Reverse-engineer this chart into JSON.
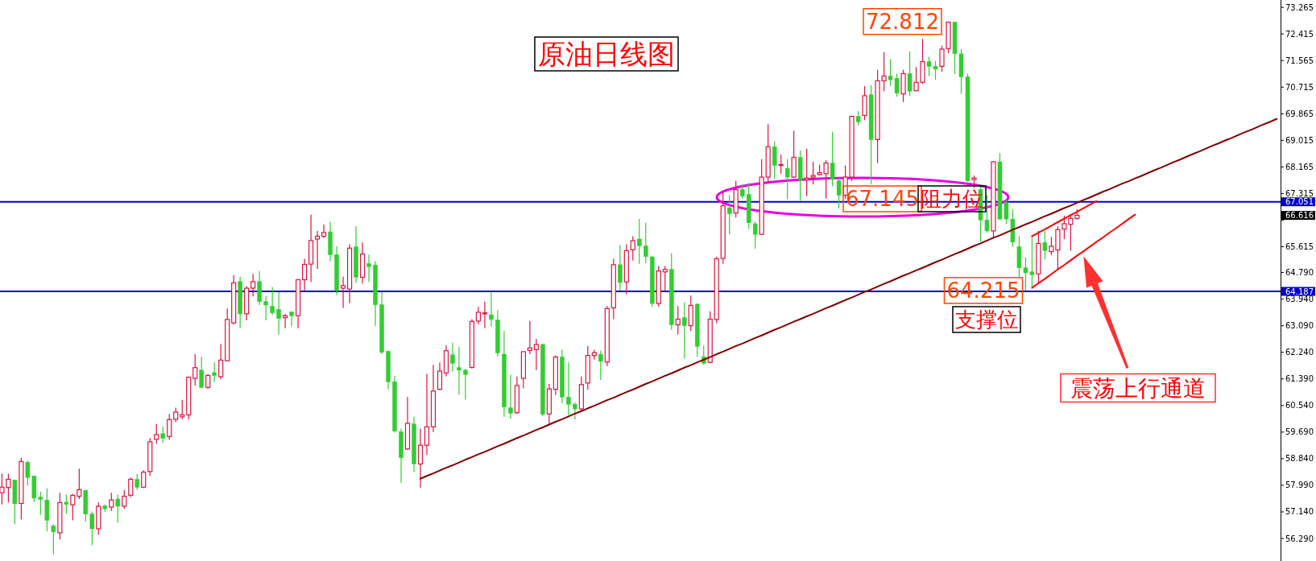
{
  "chart_data": {
    "type": "candlestick",
    "title": "原油日线图",
    "categories": [
      null,
      null,
      null,
      null,
      null,
      null,
      null,
      null,
      null,
      null,
      null,
      null,
      null,
      null,
      null,
      null,
      null,
      null,
      null,
      null,
      null,
      null,
      null,
      null,
      null,
      null,
      null,
      null,
      null,
      null,
      null,
      null,
      null,
      null,
      null,
      null,
      null,
      null,
      null,
      null,
      null,
      null,
      null,
      null,
      null,
      null,
      null,
      null,
      null,
      null,
      null,
      null,
      null,
      null,
      null,
      null,
      null,
      null,
      null,
      null,
      null,
      null,
      null,
      null,
      null,
      null,
      null,
      null,
      null,
      null,
      null,
      null,
      null,
      null,
      null,
      null,
      null,
      null,
      null,
      null,
      null,
      null,
      null,
      null,
      null,
      null,
      null,
      null,
      null,
      null,
      null,
      null,
      null,
      null,
      null,
      null,
      null,
      null,
      null,
      null,
      null,
      null,
      null,
      null,
      null,
      null,
      null,
      null,
      null,
      null,
      null,
      null,
      null,
      null,
      null,
      null,
      null,
      null,
      null,
      null,
      null,
      null,
      null,
      null,
      null,
      null,
      null,
      null,
      null,
      null,
      null,
      null,
      null,
      null,
      null,
      null,
      null,
      null,
      null,
      null,
      null,
      null,
      null,
      null,
      null,
      null,
      null,
      null,
      null,
      null,
      null,
      null,
      null,
      null,
      null,
      null,
      null,
      null,
      null,
      null,
      null,
      null,
      null,
      null,
      null,
      null,
      null,
      null,
      null,
      null,
      null,
      null,
      null,
      null,
      null,
      null,
      null,
      null,
      null,
      null,
      null,
      null,
      null,
      null,
      null,
      null,
      null,
      null,
      null,
      null,
      null,
      null,
      null,
      null,
      null,
      null,
      null,
      null,
      null
    ],
    "colors": [
      "#dc143c",
      "#dc143c",
      "#32cd32",
      "#dc143c",
      "#32cd32",
      "#32cd32",
      "#32cd32",
      "#32cd32",
      "#32cd32",
      "#dc143c",
      "#32cd32",
      "#dc143c",
      "#dc143c",
      "#32cd32",
      "#32cd32",
      "#dc143c",
      "#32cd32",
      "#dc143c",
      "#32cd32",
      "#dc143c",
      "#dc143c",
      "#32cd32",
      "#dc143c",
      "#dc143c",
      "#dc143c",
      "#32cd32",
      "#dc143c",
      "#dc143c",
      "#dc143c",
      "#dc143c",
      "#dc143c",
      "#32cd32",
      "#dc143c",
      "#32cd32",
      "#dc143c",
      "#dc143c",
      "#dc143c",
      "#32cd32",
      "#dc143c",
      "#dc143c",
      "#32cd32",
      "#32cd32",
      "#32cd32",
      "#32cd32",
      "#dc143c",
      "#32cd32",
      "#dc143c",
      "#dc143c",
      "#dc143c",
      "#dc143c",
      "#dc143c",
      "#32cd32",
      "#32cd32",
      "#dc143c",
      "#dc143c",
      "#32cd32",
      "#dc143c",
      "#32cd32",
      "#32cd32",
      "#32cd32",
      "#32cd32",
      "#32cd32",
      "#32cd32",
      "#dc143c",
      "#32cd32",
      "#dc143c",
      "#dc143c",
      "#dc143c",
      "#dc143c",
      "#dc143c",
      "#32cd32",
      "#32cd32",
      "#32cd32",
      "#dc143c",
      "#dc143c",
      "#dc143c",
      "#32cd32",
      "#32cd32",
      "#32cd32",
      "#32cd32",
      "#dc143c",
      "#dc143c",
      "#dc143c",
      "#dc143c",
      "#32cd32",
      "#dc143c",
      "#dc143c",
      "#32cd32",
      "#32cd32",
      "#32cd32",
      "#dc143c",
      "#dc143c",
      "#dc143c",
      "#32cd32",
      "#dc143c",
      "#dc143c",
      "#32cd32",
      "#dc143c",
      "#dc143c",
      "#32cd32",
      "#32cd32",
      "#32cd32",
      "#dc143c",
      "#dc143c",
      "#32cd32",
      "#dc143c",
      "#32cd32",
      "#dc143c",
      "#32cd32",
      "#32cd32",
      "#dc143c",
      "#dc143c",
      "#dc143c",
      "#32cd32",
      "#dc143c",
      "#32cd32",
      "#32cd32",
      "#32cd32",
      "#dc143c",
      "#dc143c",
      "#32cd32",
      "#dc143c",
      "#32cd32",
      "#dc143c",
      "#32cd32",
      "#dc143c",
      "#dc143c",
      "#dc143c",
      "#dc143c",
      "#32cd32",
      "#32cd32",
      "#dc143c",
      "#dc143c",
      "#32cd32",
      "#dc143c",
      "#32cd32",
      "#dc143c",
      "#dc143c",
      "#32cd32",
      "#32cd32",
      "#dc143c",
      "#32cd32",
      "#dc143c",
      "#dc143c",
      "#32cd32",
      "#32cd32",
      "#dc143c",
      "#dc143c",
      "#32cd32",
      "#32cd32",
      "#32cd32",
      "#dc143c",
      "#32cd32",
      "#32cd32",
      "#dc143c",
      "#32cd32",
      "#32cd32",
      "#32cd32",
      "#32cd32",
      "#32cd32",
      "#32cd32",
      "#dc143c",
      "#32cd32",
      "#dc143c",
      "#dc143c",
      "#dc143c",
      "#dc143c",
      "#dc143c",
      null,
      null,
      null,
      null,
      null,
      null,
      null,
      null,
      null,
      null,
      null,
      null,
      null,
      null,
      null,
      null,
      null,
      null,
      null,
      null,
      null,
      null,
      null,
      null,
      null,
      null,
      null,
      null,
      null,
      null,
      null
    ],
    "ohlc": [
      [
        57.75,
        58.36,
        57.38,
        57.93
      ],
      [
        57.92,
        58.36,
        57.44,
        58.18
      ],
      [
        58.16,
        58.16,
        56.75,
        57.4
      ],
      [
        57.41,
        58.87,
        56.9,
        58.75
      ],
      [
        58.73,
        58.77,
        57.98,
        58.24
      ],
      [
        58.29,
        58.29,
        57.45,
        57.58
      ],
      [
        57.61,
        57.78,
        57.04,
        57.54
      ],
      [
        57.52,
        57.89,
        56.52,
        56.87
      ],
      [
        56.69,
        56.75,
        55.78,
        56.5
      ],
      [
        56.47,
        57.75,
        56.26,
        57.44
      ],
      [
        57.45,
        57.69,
        57.07,
        57.38
      ],
      [
        57.37,
        57.72,
        56.87,
        57.67
      ],
      [
        57.64,
        58.52,
        57.55,
        57.85
      ],
      [
        57.83,
        57.83,
        56.83,
        57.07
      ],
      [
        57.07,
        57.15,
        56.07,
        56.6
      ],
      [
        56.6,
        57.44,
        56.41,
        57.32
      ],
      [
        57.33,
        57.38,
        57.13,
        57.24
      ],
      [
        57.29,
        57.75,
        57.17,
        57.52
      ],
      [
        57.55,
        57.69,
        56.79,
        57.32
      ],
      [
        57.32,
        57.84,
        57.24,
        57.64
      ],
      [
        57.67,
        58.24,
        57.61,
        58.18
      ],
      [
        58.18,
        58.35,
        57.84,
        57.93
      ],
      [
        57.93,
        58.47,
        57.9,
        58.41
      ],
      [
        58.43,
        59.5,
        58.29,
        59.38
      ],
      [
        59.46,
        59.95,
        59.32,
        59.61
      ],
      [
        59.64,
        59.87,
        59.35,
        59.49
      ],
      [
        59.55,
        60.27,
        59.44,
        60.09
      ],
      [
        60.1,
        60.47,
        60.01,
        60.33
      ],
      [
        60.18,
        60.72,
        60.1,
        60.24
      ],
      [
        60.24,
        61.47,
        60.1,
        61.44
      ],
      [
        61.41,
        62.18,
        61.18,
        61.75
      ],
      [
        61.67,
        62.1,
        61.1,
        61.12
      ],
      [
        61.12,
        61.55,
        61.07,
        61.5
      ],
      [
        61.59,
        61.92,
        61.29,
        61.5
      ],
      [
        61.46,
        62.5,
        61.38,
        61.99
      ],
      [
        61.97,
        63.64,
        61.95,
        63.29
      ],
      [
        63.18,
        64.71,
        63.13,
        64.46
      ],
      [
        64.5,
        64.66,
        63.01,
        63.47
      ],
      [
        63.47,
        64.35,
        63.26,
        64.29
      ],
      [
        64.29,
        64.75,
        64.03,
        64.5
      ],
      [
        64.5,
        64.84,
        63.75,
        63.86
      ],
      [
        63.86,
        64.04,
        63.26,
        63.75
      ],
      [
        63.71,
        64.32,
        63.44,
        63.5
      ],
      [
        63.61,
        64.16,
        62.81,
        63.32
      ],
      [
        63.35,
        63.47,
        63.01,
        63.41
      ],
      [
        63.53,
        63.55,
        63.07,
        63.41
      ],
      [
        63.41,
        64.56,
        63.01,
        64.56
      ],
      [
        64.56,
        65.23,
        64.21,
        65.05
      ],
      [
        65.06,
        66.64,
        64.49,
        65.81
      ],
      [
        65.86,
        66.12,
        64.9,
        65.95
      ],
      [
        65.95,
        66.32,
        65.89,
        66.07
      ],
      [
        66.09,
        66.41,
        65.15,
        65.36
      ],
      [
        65.36,
        65.63,
        64.07,
        64.21
      ],
      [
        64.29,
        64.66,
        63.66,
        64.37
      ],
      [
        64.26,
        65.69,
        63.81,
        65.57
      ],
      [
        65.61,
        66.27,
        64.47,
        64.64
      ],
      [
        64.64,
        65.75,
        64.44,
        65.38
      ],
      [
        65.07,
        65.36,
        64.49,
        64.98
      ],
      [
        65.03,
        65.15,
        63.09,
        63.76
      ],
      [
        63.76,
        64.16,
        62.18,
        62.24
      ],
      [
        62.27,
        62.3,
        61.06,
        61.3
      ],
      [
        61.3,
        61.49,
        59.67,
        59.72
      ],
      [
        59.7,
        59.8,
        58.07,
        58.87
      ],
      [
        59.15,
        60.81,
        59.12,
        59.97
      ],
      [
        59.95,
        60.18,
        58.41,
        58.67
      ],
      [
        58.67,
        59.8,
        57.92,
        59.27
      ],
      [
        59.27,
        61.55,
        58.96,
        59.86
      ],
      [
        59.86,
        61.84,
        59.69,
        61.0
      ],
      [
        61.06,
        61.92,
        61.03,
        61.64
      ],
      [
        61.58,
        62.46,
        61.47,
        62.29
      ],
      [
        62.16,
        62.55,
        61.62,
        61.89
      ],
      [
        61.75,
        62.41,
        60.89,
        61.67
      ],
      [
        61.67,
        61.72,
        60.73,
        61.53
      ],
      [
        61.76,
        63.3,
        61.72,
        63.23
      ],
      [
        63.24,
        63.69,
        63.13,
        63.52
      ],
      [
        63.47,
        63.86,
        63.01,
        63.5
      ],
      [
        63.44,
        64.18,
        63.06,
        63.29
      ],
      [
        63.27,
        63.58,
        62.1,
        62.22
      ],
      [
        62.18,
        62.92,
        60.18,
        60.49
      ],
      [
        60.47,
        61.52,
        60.12,
        60.29
      ],
      [
        60.31,
        61.47,
        60.27,
        61.18
      ],
      [
        61.41,
        62.26,
        61.09,
        62.26
      ],
      [
        62.3,
        63.24,
        62.18,
        62.38
      ],
      [
        62.33,
        62.67,
        61.67,
        62.49
      ],
      [
        62.49,
        62.52,
        60.2,
        60.26
      ],
      [
        60.27,
        61.23,
        59.95,
        61.07
      ],
      [
        61.06,
        62.14,
        60.87,
        62.09
      ],
      [
        62.09,
        62.32,
        60.62,
        60.81
      ],
      [
        60.81,
        61.92,
        60.23,
        60.58
      ],
      [
        60.58,
        60.64,
        60.09,
        60.43
      ],
      [
        60.43,
        61.47,
        60.35,
        61.21
      ],
      [
        61.26,
        62.44,
        61.04,
        62.14
      ],
      [
        62.14,
        62.32,
        62.01,
        62.23
      ],
      [
        62.18,
        62.29,
        61.36,
        61.95
      ],
      [
        61.93,
        63.72,
        61.8,
        63.64
      ],
      [
        63.66,
        65.23,
        63.3,
        65.04
      ],
      [
        65.04,
        65.67,
        64.21,
        64.47
      ],
      [
        64.49,
        65.69,
        64.1,
        65.49
      ],
      [
        65.52,
        65.95,
        65.17,
        65.81
      ],
      [
        65.86,
        66.5,
        65.07,
        65.64
      ],
      [
        65.64,
        66.38,
        65.09,
        65.3
      ],
      [
        65.29,
        65.32,
        63.69,
        63.8
      ],
      [
        63.8,
        65.0,
        63.7,
        64.84
      ],
      [
        64.81,
        65.0,
        64.2,
        64.89
      ],
      [
        64.89,
        65.4,
        62.96,
        63.12
      ],
      [
        63.12,
        63.72,
        62.81,
        63.3
      ],
      [
        63.35,
        63.84,
        62.04,
        63.09
      ],
      [
        63.09,
        64.06,
        62.92,
        63.74
      ],
      [
        63.78,
        63.8,
        62.1,
        62.43
      ],
      [
        62.1,
        62.46,
        61.84,
        61.89
      ],
      [
        61.92,
        63.55,
        61.89,
        63.3
      ],
      [
        63.29,
        65.3,
        63.17,
        65.23
      ],
      [
        65.24,
        67.37,
        65.07,
        66.92
      ],
      [
        66.86,
        67.26,
        66.01,
        66.67
      ],
      [
        66.69,
        67.72,
        66.55,
        67.44
      ],
      [
        67.44,
        67.61,
        67.15,
        67.23
      ],
      [
        67.29,
        67.66,
        66.18,
        66.38
      ],
      [
        66.35,
        66.41,
        65.55,
        66.01
      ],
      [
        66.01,
        68.41,
        65.98,
        67.84
      ],
      [
        67.84,
        69.53,
        67.66,
        68.81
      ],
      [
        68.81,
        68.98,
        67.78,
        68.21
      ],
      [
        68.21,
        68.56,
        67.95,
        68.24
      ],
      [
        68.12,
        68.41,
        67.13,
        67.84
      ],
      [
        67.84,
        69.32,
        67.81,
        68.47
      ],
      [
        68.47,
        68.69,
        67.09,
        67.76
      ],
      [
        67.76,
        68.75,
        67.23,
        67.81
      ],
      [
        67.84,
        68.33,
        67.61,
        67.89
      ],
      [
        67.92,
        68.24,
        67.89,
        67.98
      ],
      [
        67.95,
        68.38,
        67.15,
        68.29
      ],
      [
        68.29,
        69.29,
        67.55,
        67.78
      ],
      [
        67.72,
        67.81,
        66.84,
        67.26
      ],
      [
        67.26,
        68.21,
        67.15,
        67.84
      ],
      [
        67.84,
        69.81,
        67.72,
        69.78
      ],
      [
        69.78,
        69.95,
        69.49,
        69.61
      ],
      [
        69.81,
        70.75,
        69.66,
        70.44
      ],
      [
        70.47,
        70.78,
        67.61,
        69.04
      ],
      [
        69.04,
        71.27,
        68.29,
        70.92
      ],
      [
        70.92,
        71.84,
        70.58,
        71.07
      ],
      [
        71.07,
        71.61,
        70.75,
        70.95
      ],
      [
        71.0,
        71.15,
        70.41,
        70.52
      ],
      [
        70.5,
        71.27,
        70.24,
        71.15
      ],
      [
        71.15,
        71.86,
        70.43,
        70.58
      ],
      [
        70.6,
        71.36,
        70.58,
        70.87
      ],
      [
        70.87,
        72.26,
        70.81,
        71.53
      ],
      [
        71.53,
        71.69,
        71.07,
        71.38
      ],
      [
        71.38,
        71.55,
        70.95,
        71.29
      ],
      [
        71.38,
        72.04,
        71.21,
        71.93
      ],
      [
        71.95,
        72.812,
        71.8,
        72.79
      ],
      [
        72.79,
        72.8,
        71.13,
        71.78
      ],
      [
        71.78,
        71.93,
        70.5,
        71.04
      ],
      [
        71.04,
        71.15,
        67.69,
        67.72
      ],
      [
        67.76,
        67.89,
        67.49,
        67.81
      ],
      [
        67.44,
        67.61,
        65.76,
        66.47
      ],
      [
        66.47,
        67.26,
        66.07,
        66.12
      ],
      [
        66.12,
        68.35,
        65.89,
        68.33
      ],
      [
        68.33,
        68.6,
        66.47,
        66.5
      ],
      [
        67.04,
        67.12,
        66.35,
        66.5
      ],
      [
        66.5,
        66.81,
        65.61,
        65.76
      ],
      [
        65.61,
        65.95,
        64.64,
        64.94
      ],
      [
        64.94,
        65.27,
        64.215,
        64.78
      ],
      [
        64.81,
        65.95,
        64.3,
        64.72
      ],
      [
        64.75,
        66.12,
        64.47,
        65.72
      ],
      [
        65.75,
        66.12,
        65.21,
        65.49
      ],
      [
        65.46,
        65.93,
        65.35,
        65.63
      ],
      [
        65.51,
        66.27,
        64.9,
        66.16
      ],
      [
        66.18,
        66.61,
        65.86,
        66.35
      ],
      [
        66.33,
        66.66,
        65.49,
        66.52
      ],
      [
        66.52,
        66.81,
        66.47,
        66.616
      ],
      null,
      null,
      null,
      null,
      null,
      null,
      null,
      null,
      null,
      null,
      null,
      null,
      null,
      null,
      null,
      null,
      null,
      null,
      null,
      null,
      null,
      null,
      null,
      null,
      null,
      null,
      null,
      null,
      null,
      null,
      null
    ],
    "series": [
      {
        "type": "line",
        "color": "#800000",
        "values": [
          null,
          null,
          null,
          null,
          null,
          null,
          null,
          null,
          null,
          null,
          null,
          null,
          null,
          null,
          null,
          null,
          null,
          null,
          null,
          null,
          null,
          null,
          null,
          null,
          null,
          null,
          null,
          null,
          null,
          null,
          null,
          null,
          null,
          null,
          null,
          null,
          null,
          null,
          null,
          null,
          null,
          null,
          null,
          null,
          null,
          null,
          null,
          null,
          null,
          null,
          null,
          null,
          null,
          null,
          null,
          null,
          null,
          null,
          null,
          null,
          null,
          null,
          null,
          null,
          null,
          58.2,
          58.29,
          58.37,
          58.46,
          58.55,
          58.63,
          58.72,
          58.81,
          58.89,
          58.98,
          59.06,
          59.15,
          59.24,
          59.32,
          59.41,
          59.5,
          59.58,
          59.67,
          59.76,
          59.84,
          59.93,
          60.02,
          60.1,
          60.19,
          60.28,
          60.36,
          60.45,
          60.53,
          60.62,
          60.71,
          60.79,
          60.88,
          60.97,
          61.05,
          61.14,
          61.23,
          61.31,
          61.4,
          61.49,
          61.57,
          61.66,
          61.75,
          61.83,
          61.92,
          62.0,
          62.09,
          62.18,
          62.26,
          62.35,
          62.44,
          62.52,
          62.61,
          62.7,
          62.78,
          62.87,
          62.96,
          63.04,
          63.13,
          63.22,
          63.3,
          63.39,
          63.47,
          63.56,
          63.65,
          63.73,
          63.82,
          63.91,
          63.99,
          64.08,
          64.17,
          64.25,
          64.34,
          64.43,
          64.51,
          64.6,
          64.69,
          64.77,
          64.86,
          64.94,
          65.03,
          65.12,
          65.2,
          65.29,
          65.38,
          65.46,
          65.55,
          65.64,
          65.72,
          65.81,
          65.9,
          65.98,
          66.07,
          66.16,
          66.24,
          66.33,
          66.41,
          66.5,
          66.59,
          66.67,
          66.76,
          66.85,
          66.93,
          67.02,
          67.11,
          67.19,
          67.28,
          67.37,
          67.45,
          67.54,
          67.63,
          67.71,
          67.8,
          67.88,
          67.97,
          68.06,
          68.14,
          68.23,
          68.32,
          68.4,
          68.49,
          68.58,
          68.66,
          68.75,
          68.84,
          68.92,
          69.01,
          69.09,
          69.18,
          69.27,
          69.35,
          69.44,
          69.53,
          69.61,
          69.7
        ]
      },
      {
        "type": "line",
        "color": "#ff0000",
        "values": [
          null,
          null,
          null,
          null,
          null,
          null,
          null,
          null,
          null,
          null,
          null,
          null,
          null,
          null,
          null,
          null,
          null,
          null,
          null,
          null,
          null,
          null,
          null,
          null,
          null,
          null,
          null,
          null,
          null,
          null,
          null,
          null,
          null,
          null,
          null,
          null,
          null,
          null,
          null,
          null,
          null,
          null,
          null,
          null,
          null,
          null,
          null,
          null,
          null,
          null,
          null,
          null,
          null,
          null,
          null,
          null,
          null,
          null,
          null,
          null,
          null,
          null,
          null,
          null,
          null,
          null,
          null,
          null,
          null,
          null,
          null,
          null,
          null,
          null,
          null,
          null,
          null,
          null,
          null,
          null,
          null,
          null,
          null,
          null,
          null,
          null,
          null,
          null,
          null,
          null,
          null,
          null,
          null,
          null,
          null,
          null,
          null,
          null,
          null,
          null,
          null,
          null,
          null,
          null,
          null,
          null,
          null,
          null,
          null,
          null,
          null,
          null,
          null,
          null,
          null,
          null,
          null,
          null,
          null,
          null,
          null,
          null,
          null,
          null,
          null,
          null,
          null,
          null,
          null,
          null,
          null,
          null,
          null,
          null,
          null,
          null,
          null,
          null,
          null,
          null,
          null,
          null,
          null,
          null,
          null,
          null,
          null,
          null,
          null,
          null,
          null,
          null,
          null,
          null,
          null,
          null,
          null,
          null,
          null,
          null,
          65.95,
          66.06,
          66.17,
          66.29,
          66.4,
          66.51,
          66.62,
          66.73,
          66.85,
          66.96,
          67.07,
          null,
          null,
          null,
          null,
          null,
          null,
          null,
          null,
          null,
          null,
          null,
          null,
          null,
          null,
          null,
          null,
          null,
          null,
          null,
          null,
          null,
          null,
          null,
          null,
          null,
          null,
          null,
          null
        ]
      },
      {
        "type": "line",
        "color": "#ff0000",
        "values": [
          null,
          null,
          null,
          null,
          null,
          null,
          null,
          null,
          null,
          null,
          null,
          null,
          null,
          null,
          null,
          null,
          null,
          null,
          null,
          null,
          null,
          null,
          null,
          null,
          null,
          null,
          null,
          null,
          null,
          null,
          null,
          null,
          null,
          null,
          null,
          null,
          null,
          null,
          null,
          null,
          null,
          null,
          null,
          null,
          null,
          null,
          null,
          null,
          null,
          null,
          null,
          null,
          null,
          null,
          null,
          null,
          null,
          null,
          null,
          null,
          null,
          null,
          null,
          null,
          null,
          null,
          null,
          null,
          null,
          null,
          null,
          null,
          null,
          null,
          null,
          null,
          null,
          null,
          null,
          null,
          null,
          null,
          null,
          null,
          null,
          null,
          null,
          null,
          null,
          null,
          null,
          null,
          null,
          null,
          null,
          null,
          null,
          null,
          null,
          null,
          null,
          null,
          null,
          null,
          null,
          null,
          null,
          null,
          null,
          null,
          null,
          null,
          null,
          null,
          null,
          null,
          null,
          null,
          null,
          null,
          null,
          null,
          null,
          null,
          null,
          null,
          null,
          null,
          null,
          null,
          null,
          null,
          null,
          null,
          null,
          null,
          null,
          null,
          null,
          null,
          null,
          null,
          null,
          null,
          null,
          null,
          null,
          null,
          null,
          null,
          null,
          null,
          null,
          null,
          null,
          null,
          null,
          null,
          null,
          null,
          64.3,
          64.45,
          64.59,
          64.74,
          64.89,
          65.03,
          65.18,
          65.33,
          65.47,
          65.62,
          65.77,
          65.91,
          66.06,
          66.2,
          66.35,
          66.5,
          66.64,
          null,
          null,
          null,
          null,
          null,
          null,
          null,
          null,
          null,
          null,
          null,
          null,
          null,
          null,
          null,
          null,
          null,
          null,
          null,
          null,
          null,
          null
        ]
      }
    ],
    "ylim": [
      55.57,
      73.5
    ],
    "yticks": [
      73.265,
      72.415,
      71.565,
      70.715,
      69.865,
      69.015,
      68.165,
      67.315,
      {
        "value": 66.465,
        "label": null
      },
      65.615,
      {
        "value": 64.79,
        "label": "64.790"
      },
      {
        "value": 63.94,
        "label": "63.940"
      },
      {
        "value": 63.09,
        "label": "63.090"
      },
      {
        "value": 62.24,
        "label": "62.240"
      },
      {
        "value": 61.39,
        "label": "61.390"
      },
      {
        "value": 60.54,
        "label": "60.540"
      },
      {
        "value": 59.69,
        "label": "59.690"
      },
      {
        "value": 58.84,
        "label": "58.840"
      },
      {
        "value": 57.99,
        "label": "57.990"
      },
      {
        "value": 57.14,
        "label": "57.140"
      },
      {
        "value": 56.29,
        "label": "56.290"
      }
    ],
    "ref_lines": [
      {
        "axis": "y",
        "value": 67.051,
        "label": "67.051",
        "color": "#0000cd"
      },
      {
        "axis": "y",
        "value": 64.187,
        "label": "64.187",
        "color": "#0000cd"
      }
    ],
    "annotations": [
      "72.812",
      {
        "text": "67.145",
        "y": 67.145
      },
      "阻力位",
      {
        "text": "64.215",
        "y": 64.215
      },
      "支撑位",
      "震荡上行通道",
      "66.616"
    ],
    "grid": false
  }
}
